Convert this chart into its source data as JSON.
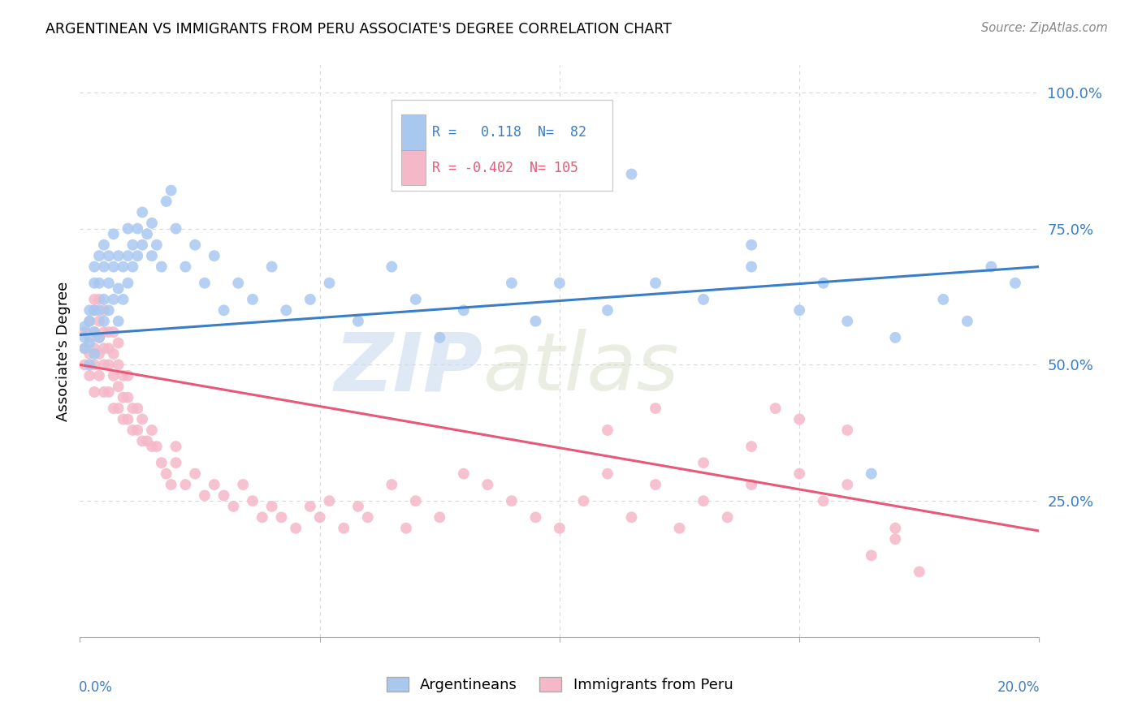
{
  "title": "ARGENTINEAN VS IMMIGRANTS FROM PERU ASSOCIATE'S DEGREE CORRELATION CHART",
  "source": "Source: ZipAtlas.com",
  "ylabel": "Associate's Degree",
  "ytick_vals": [
    0.0,
    0.25,
    0.5,
    0.75,
    1.0
  ],
  "ytick_labels": [
    "",
    "25.0%",
    "50.0%",
    "75.0%",
    "100.0%"
  ],
  "xtick_vals": [
    0.0,
    0.05,
    0.1,
    0.15,
    0.2
  ],
  "xlim": [
    0.0,
    0.2
  ],
  "ylim": [
    0.0,
    1.05
  ],
  "r_argentinean": 0.118,
  "n_argentinean": 82,
  "r_peru": -0.402,
  "n_peru": 105,
  "blue_scatter_color": "#A8C8F0",
  "pink_scatter_color": "#F5B8C8",
  "blue_line_color": "#3A7EC8",
  "pink_line_color": "#E85878",
  "blue_text_color": "#3A7EC8",
  "pink_text_color": "#E85878",
  "background_color": "#FFFFFF",
  "grid_color": "#D8D8D8",
  "watermark_text": "ZIPatlas",
  "watermark_color": "#D0DFF0",
  "argentinean_x": [
    0.001,
    0.001,
    0.001,
    0.002,
    0.002,
    0.002,
    0.002,
    0.003,
    0.003,
    0.003,
    0.003,
    0.003,
    0.004,
    0.004,
    0.004,
    0.004,
    0.005,
    0.005,
    0.005,
    0.005,
    0.006,
    0.006,
    0.006,
    0.007,
    0.007,
    0.007,
    0.008,
    0.008,
    0.008,
    0.009,
    0.009,
    0.01,
    0.01,
    0.01,
    0.011,
    0.011,
    0.012,
    0.012,
    0.013,
    0.013,
    0.014,
    0.015,
    0.015,
    0.016,
    0.017,
    0.018,
    0.019,
    0.02,
    0.022,
    0.024,
    0.026,
    0.028,
    0.03,
    0.033,
    0.036,
    0.04,
    0.043,
    0.048,
    0.052,
    0.058,
    0.065,
    0.07,
    0.075,
    0.08,
    0.09,
    0.095,
    0.1,
    0.11,
    0.115,
    0.12,
    0.13,
    0.14,
    0.15,
    0.155,
    0.16,
    0.17,
    0.14,
    0.165,
    0.18,
    0.185,
    0.19,
    0.195
  ],
  "argentinean_y": [
    0.53,
    0.55,
    0.57,
    0.5,
    0.54,
    0.58,
    0.6,
    0.52,
    0.56,
    0.6,
    0.65,
    0.68,
    0.55,
    0.6,
    0.65,
    0.7,
    0.58,
    0.62,
    0.68,
    0.72,
    0.6,
    0.65,
    0.7,
    0.62,
    0.68,
    0.74,
    0.58,
    0.64,
    0.7,
    0.62,
    0.68,
    0.65,
    0.7,
    0.75,
    0.68,
    0.72,
    0.7,
    0.75,
    0.72,
    0.78,
    0.74,
    0.7,
    0.76,
    0.72,
    0.68,
    0.8,
    0.82,
    0.75,
    0.68,
    0.72,
    0.65,
    0.7,
    0.6,
    0.65,
    0.62,
    0.68,
    0.6,
    0.62,
    0.65,
    0.58,
    0.68,
    0.62,
    0.55,
    0.6,
    0.65,
    0.58,
    0.65,
    0.6,
    0.85,
    0.65,
    0.62,
    0.68,
    0.6,
    0.65,
    0.58,
    0.55,
    0.72,
    0.3,
    0.62,
    0.58,
    0.68,
    0.65
  ],
  "peru_x": [
    0.001,
    0.001,
    0.001,
    0.002,
    0.002,
    0.002,
    0.002,
    0.003,
    0.003,
    0.003,
    0.003,
    0.003,
    0.003,
    0.004,
    0.004,
    0.004,
    0.004,
    0.004,
    0.005,
    0.005,
    0.005,
    0.005,
    0.005,
    0.006,
    0.006,
    0.006,
    0.006,
    0.007,
    0.007,
    0.007,
    0.007,
    0.008,
    0.008,
    0.008,
    0.008,
    0.009,
    0.009,
    0.009,
    0.01,
    0.01,
    0.01,
    0.011,
    0.011,
    0.012,
    0.012,
    0.013,
    0.013,
    0.014,
    0.015,
    0.015,
    0.016,
    0.017,
    0.018,
    0.019,
    0.02,
    0.02,
    0.022,
    0.024,
    0.026,
    0.028,
    0.03,
    0.032,
    0.034,
    0.036,
    0.038,
    0.04,
    0.042,
    0.045,
    0.048,
    0.05,
    0.052,
    0.055,
    0.058,
    0.06,
    0.065,
    0.068,
    0.07,
    0.075,
    0.08,
    0.085,
    0.09,
    0.095,
    0.1,
    0.105,
    0.11,
    0.115,
    0.12,
    0.125,
    0.13,
    0.135,
    0.14,
    0.145,
    0.15,
    0.155,
    0.16,
    0.165,
    0.17,
    0.175,
    0.15,
    0.16,
    0.17,
    0.13,
    0.14,
    0.11,
    0.12
  ],
  "peru_y": [
    0.5,
    0.53,
    0.56,
    0.48,
    0.52,
    0.55,
    0.58,
    0.45,
    0.5,
    0.53,
    0.56,
    0.6,
    0.62,
    0.48,
    0.52,
    0.55,
    0.58,
    0.62,
    0.45,
    0.5,
    0.53,
    0.56,
    0.6,
    0.45,
    0.5,
    0.53,
    0.56,
    0.42,
    0.48,
    0.52,
    0.56,
    0.42,
    0.46,
    0.5,
    0.54,
    0.4,
    0.44,
    0.48,
    0.4,
    0.44,
    0.48,
    0.38,
    0.42,
    0.38,
    0.42,
    0.36,
    0.4,
    0.36,
    0.35,
    0.38,
    0.35,
    0.32,
    0.3,
    0.28,
    0.32,
    0.35,
    0.28,
    0.3,
    0.26,
    0.28,
    0.26,
    0.24,
    0.28,
    0.25,
    0.22,
    0.24,
    0.22,
    0.2,
    0.24,
    0.22,
    0.25,
    0.2,
    0.24,
    0.22,
    0.28,
    0.2,
    0.25,
    0.22,
    0.3,
    0.28,
    0.25,
    0.22,
    0.2,
    0.25,
    0.3,
    0.22,
    0.28,
    0.2,
    0.25,
    0.22,
    0.35,
    0.42,
    0.3,
    0.25,
    0.28,
    0.15,
    0.2,
    0.12,
    0.4,
    0.38,
    0.18,
    0.32,
    0.28,
    0.38,
    0.42
  ]
}
